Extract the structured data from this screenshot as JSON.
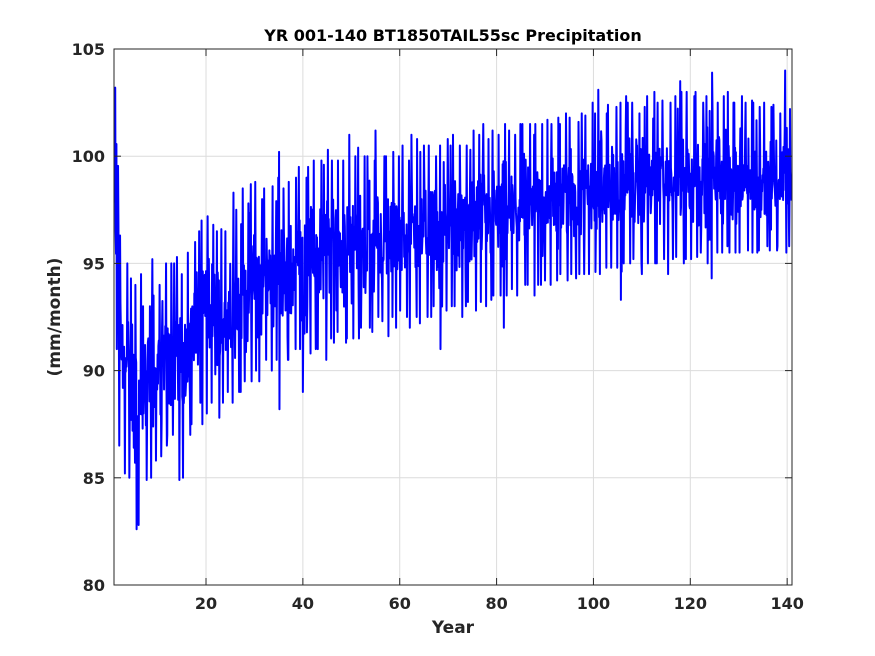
{
  "chart_data": {
    "type": "line",
    "title": "YR 001-140 BT1850TAIL55sc Precipitation",
    "xlabel": "Year",
    "ylabel": "(mm/month)",
    "xlim": [
      1,
      141
    ],
    "ylim": [
      80,
      105
    ],
    "xticks": [
      20,
      40,
      60,
      80,
      100,
      120,
      140
    ],
    "yticks": [
      80,
      85,
      90,
      95,
      100,
      105
    ],
    "grid": true,
    "legend": "none",
    "series": [
      {
        "color": "#0000ff",
        "note_values": "monthly values; envelope per year shown as [year, min, max]",
        "envelope": [
          [
            1,
            91.0,
            103.2
          ],
          [
            2,
            86.5,
            96.3
          ],
          [
            3,
            85.2,
            95.0
          ],
          [
            4,
            85.0,
            94.3
          ],
          [
            5,
            82.6,
            94.0
          ],
          [
            6,
            82.8,
            94.5
          ],
          [
            7,
            84.9,
            93.0
          ],
          [
            8,
            85.0,
            95.2
          ],
          [
            9,
            85.8,
            93.5
          ],
          [
            10,
            86.0,
            94.0
          ],
          [
            11,
            86.5,
            95.0
          ],
          [
            12,
            87.0,
            95.0
          ],
          [
            13,
            87.0,
            95.0
          ],
          [
            14,
            84.9,
            95.3
          ],
          [
            15,
            85.0,
            94.5
          ],
          [
            16,
            87.0,
            95.5
          ],
          [
            17,
            87.5,
            96.0
          ],
          [
            18,
            88.5,
            96.5
          ],
          [
            19,
            87.5,
            97.0
          ],
          [
            20,
            88.0,
            97.2
          ],
          [
            21,
            88.5,
            96.8
          ],
          [
            22,
            87.8,
            96.5
          ],
          [
            23,
            88.5,
            96.6
          ],
          [
            24,
            89.0,
            96.5
          ],
          [
            25,
            88.5,
            98.3
          ],
          [
            26,
            89.0,
            97.5
          ],
          [
            27,
            89.0,
            98.5
          ],
          [
            28,
            89.5,
            97.8
          ],
          [
            29,
            89.5,
            98.7
          ],
          [
            30,
            90.0,
            98.8
          ],
          [
            31,
            89.5,
            98.0
          ],
          [
            32,
            90.5,
            98.5
          ],
          [
            33,
            90.0,
            98.6
          ],
          [
            34,
            90.5,
            99.0
          ],
          [
            35,
            88.2,
            100.2
          ],
          [
            36,
            90.5,
            98.5
          ],
          [
            37,
            90.5,
            98.8
          ],
          [
            38,
            91.0,
            99.0
          ],
          [
            39,
            91.0,
            99.5
          ],
          [
            40,
            89.0,
            99.0
          ],
          [
            41,
            90.8,
            99.5
          ],
          [
            42,
            91.0,
            99.8
          ],
          [
            43,
            91.0,
            99.8
          ],
          [
            44,
            90.5,
            99.6
          ],
          [
            45,
            91.5,
            100.3
          ],
          [
            46,
            91.3,
            99.8
          ],
          [
            47,
            91.8,
            99.8
          ],
          [
            48,
            91.3,
            99.8
          ],
          [
            49,
            91.5,
            101.0
          ],
          [
            50,
            91.5,
            100.0
          ],
          [
            51,
            91.5,
            100.4
          ],
          [
            52,
            92.0,
            100.0
          ],
          [
            53,
            92.0,
            100.0
          ],
          [
            54,
            91.8,
            99.8
          ],
          [
            55,
            92.5,
            101.2
          ],
          [
            56,
            92.3,
            100.0
          ],
          [
            57,
            91.6,
            100.0
          ],
          [
            58,
            92.5,
            100.2
          ],
          [
            59,
            92.0,
            100.0
          ],
          [
            60,
            92.8,
            100.5
          ],
          [
            61,
            92.5,
            99.8
          ],
          [
            62,
            92.0,
            101.0
          ],
          [
            63,
            92.5,
            100.8
          ],
          [
            64,
            92.2,
            100.2
          ],
          [
            65,
            92.5,
            100.5
          ],
          [
            66,
            92.5,
            100.5
          ],
          [
            67,
            93.0,
            100.0
          ],
          [
            68,
            91.0,
            100.5
          ],
          [
            69,
            92.8,
            100.8
          ],
          [
            70,
            93.0,
            100.5
          ],
          [
            71,
            93.0,
            101.0
          ],
          [
            72,
            92.5,
            100.5
          ],
          [
            73,
            93.0,
            100.5
          ],
          [
            74,
            93.2,
            100.3
          ],
          [
            75,
            92.8,
            101.2
          ],
          [
            76,
            93.2,
            101.0
          ],
          [
            77,
            93.0,
            101.5
          ],
          [
            78,
            93.3,
            100.8
          ],
          [
            79,
            93.5,
            101.2
          ],
          [
            80,
            93.5,
            101.0
          ],
          [
            81,
            92.0,
            101.5
          ],
          [
            82,
            93.5,
            101.2
          ],
          [
            83,
            93.8,
            101.0
          ],
          [
            84,
            93.5,
            101.5
          ],
          [
            85,
            94.0,
            101.5
          ],
          [
            86,
            94.0,
            101.5
          ],
          [
            87,
            93.5,
            101.0
          ],
          [
            88,
            94.0,
            101.5
          ],
          [
            89,
            94.0,
            101.5
          ],
          [
            90,
            94.2,
            101.7
          ],
          [
            91,
            94.0,
            101.5
          ],
          [
            92,
            94.2,
            101.8
          ],
          [
            93,
            94.5,
            101.5
          ],
          [
            94,
            94.2,
            102.0
          ],
          [
            95,
            94.5,
            101.8
          ],
          [
            96,
            94.3,
            101.6
          ],
          [
            97,
            94.5,
            102.0
          ],
          [
            98,
            94.5,
            101.9
          ],
          [
            99,
            94.5,
            102.5
          ],
          [
            100,
            94.6,
            102.0
          ],
          [
            101,
            94.5,
            103.1
          ],
          [
            102,
            94.8,
            102.0
          ],
          [
            103,
            94.8,
            102.4
          ],
          [
            104,
            94.8,
            102.3
          ],
          [
            105,
            93.3,
            102.5
          ],
          [
            106,
            95.0,
            102.8
          ],
          [
            107,
            95.0,
            102.5
          ],
          [
            108,
            95.2,
            102.5
          ],
          [
            109,
            95.0,
            102.0
          ],
          [
            110,
            94.5,
            102.3
          ],
          [
            111,
            95.0,
            102.8
          ],
          [
            112,
            95.0,
            103.0
          ],
          [
            113,
            95.0,
            102.5
          ],
          [
            114,
            95.2,
            102.6
          ],
          [
            115,
            94.5,
            102.5
          ],
          [
            116,
            95.2,
            102.8
          ],
          [
            117,
            95.3,
            103.5
          ],
          [
            118,
            95.0,
            103.0
          ],
          [
            119,
            95.2,
            103.0
          ],
          [
            120,
            95.2,
            102.8
          ],
          [
            121,
            95.3,
            103.0
          ],
          [
            122,
            95.5,
            102.5
          ],
          [
            123,
            95.0,
            102.8
          ],
          [
            124,
            94.3,
            103.9
          ],
          [
            125,
            95.5,
            102.5
          ],
          [
            126,
            95.5,
            102.8
          ],
          [
            127,
            95.8,
            103.0
          ],
          [
            128,
            95.5,
            102.5
          ],
          [
            129,
            95.5,
            102.5
          ],
          [
            130,
            95.5,
            102.8
          ],
          [
            131,
            95.6,
            102.5
          ],
          [
            132,
            95.5,
            102.6
          ],
          [
            133,
            95.5,
            102.5
          ],
          [
            134,
            95.6,
            102.3
          ],
          [
            135,
            95.8,
            102.5
          ],
          [
            136,
            95.6,
            102.3
          ],
          [
            137,
            95.6,
            102.4
          ],
          [
            138,
            95.8,
            102.0
          ],
          [
            139,
            95.5,
            104.0
          ],
          [
            140,
            95.8,
            102.2
          ]
        ]
      }
    ]
  }
}
